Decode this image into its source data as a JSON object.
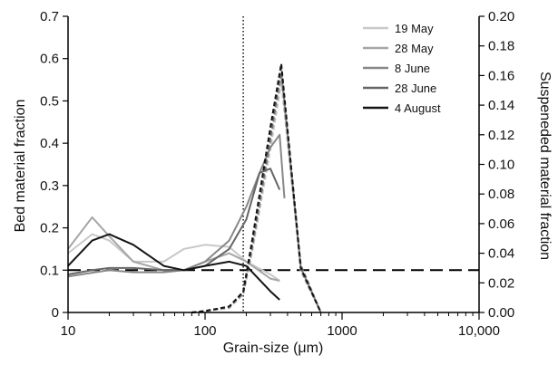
{
  "chart_data": {
    "type": "line",
    "xlabel": "Grain-size (μm)",
    "ylabel_left": "Bed material fraction",
    "ylabel_right": "Suspeneded material fraction",
    "x_scale": "log",
    "xlim": [
      10,
      10000
    ],
    "x_ticks": [
      10,
      100,
      1000,
      10000
    ],
    "x_tick_labels": [
      "10",
      "100",
      "1000",
      "10,000"
    ],
    "ylim_left": [
      0,
      0.7
    ],
    "y_ticks_left": [
      "0",
      "0.1",
      "0.2",
      "0.3",
      "0.4",
      "0.5",
      "0.6",
      "0.7"
    ],
    "ylim_right": [
      0,
      0.2
    ],
    "y_ticks_right": [
      "0.00",
      "0.02",
      "0.04",
      "0.06",
      "0.08",
      "0.10",
      "0.12",
      "0.14",
      "0.16",
      "0.18",
      "0.20"
    ],
    "grid": false,
    "legend_position": "top-right",
    "reference_lines": [
      {
        "orientation": "vertical",
        "x": 190,
        "style": "dotted",
        "color": "#000000"
      },
      {
        "orientation": "horizontal",
        "axis": "left",
        "y": 0.1,
        "style": "dashed",
        "color": "#000000"
      }
    ],
    "series": [
      {
        "name": "19 May",
        "color": "#c8c8c8",
        "bed": {
          "x": [
            10,
            15,
            20,
            30,
            50,
            70,
            100,
            150,
            200,
            300,
            350
          ],
          "y": [
            0.14,
            0.185,
            0.17,
            0.12,
            0.12,
            0.15,
            0.16,
            0.155,
            0.12,
            0.09,
            0.075
          ]
        },
        "suspended": {
          "x": [
            80,
            100,
            150,
            190,
            220,
            300,
            360,
            500,
            700
          ],
          "y": [
            0,
            0.001,
            0.003,
            0.012,
            0.04,
            0.11,
            0.155,
            0.03,
            0
          ]
        }
      },
      {
        "name": "28 May",
        "color": "#a6a6a6",
        "bed": {
          "x": [
            10,
            15,
            20,
            30,
            50,
            70,
            100,
            150,
            200,
            300,
            350
          ],
          "y": [
            0.15,
            0.225,
            0.18,
            0.12,
            0.1,
            0.1,
            0.12,
            0.14,
            0.12,
            0.08,
            0.075
          ]
        },
        "suspended": {
          "x": [
            80,
            100,
            150,
            190,
            220,
            300,
            360,
            500,
            700
          ],
          "y": [
            0,
            0.001,
            0.003,
            0.013,
            0.042,
            0.115,
            0.16,
            0.028,
            0
          ]
        }
      },
      {
        "name": "8 June",
        "color": "#888888",
        "bed": {
          "x": [
            10,
            20,
            30,
            50,
            70,
            100,
            150,
            200,
            250,
            300,
            350,
            380
          ],
          "y": [
            0.085,
            0.1,
            0.095,
            0.095,
            0.1,
            0.12,
            0.17,
            0.25,
            0.33,
            0.39,
            0.42,
            0.27
          ]
        },
        "suspended": {
          "x": [
            80,
            100,
            150,
            190,
            220,
            300,
            360,
            500,
            700
          ],
          "y": [
            0,
            0.001,
            0.004,
            0.014,
            0.045,
            0.12,
            0.162,
            0.03,
            0
          ]
        }
      },
      {
        "name": "28 June",
        "color": "#666666",
        "bed": {
          "x": [
            10,
            15,
            20,
            30,
            50,
            70,
            100,
            150,
            200,
            250,
            300,
            350
          ],
          "y": [
            0.09,
            0.1,
            0.105,
            0.105,
            0.1,
            0.1,
            0.11,
            0.15,
            0.22,
            0.33,
            0.34,
            0.29
          ]
        },
        "suspended": {
          "x": [
            80,
            100,
            150,
            190,
            220,
            300,
            360,
            500,
            700
          ],
          "y": [
            0,
            0.001,
            0.004,
            0.013,
            0.044,
            0.118,
            0.165,
            0.032,
            0
          ]
        }
      },
      {
        "name": "4 August",
        "color": "#141414",
        "bed": {
          "x": [
            10,
            15,
            20,
            30,
            50,
            70,
            100,
            150,
            200,
            300,
            350
          ],
          "y": [
            0.11,
            0.17,
            0.185,
            0.16,
            0.11,
            0.1,
            0.11,
            0.12,
            0.11,
            0.05,
            0.03
          ]
        },
        "suspended": {
          "x": [
            80,
            100,
            150,
            190,
            220,
            300,
            360,
            500,
            700
          ],
          "y": [
            0,
            0.001,
            0.004,
            0.014,
            0.048,
            0.125,
            0.168,
            0.03,
            0
          ]
        }
      }
    ]
  }
}
